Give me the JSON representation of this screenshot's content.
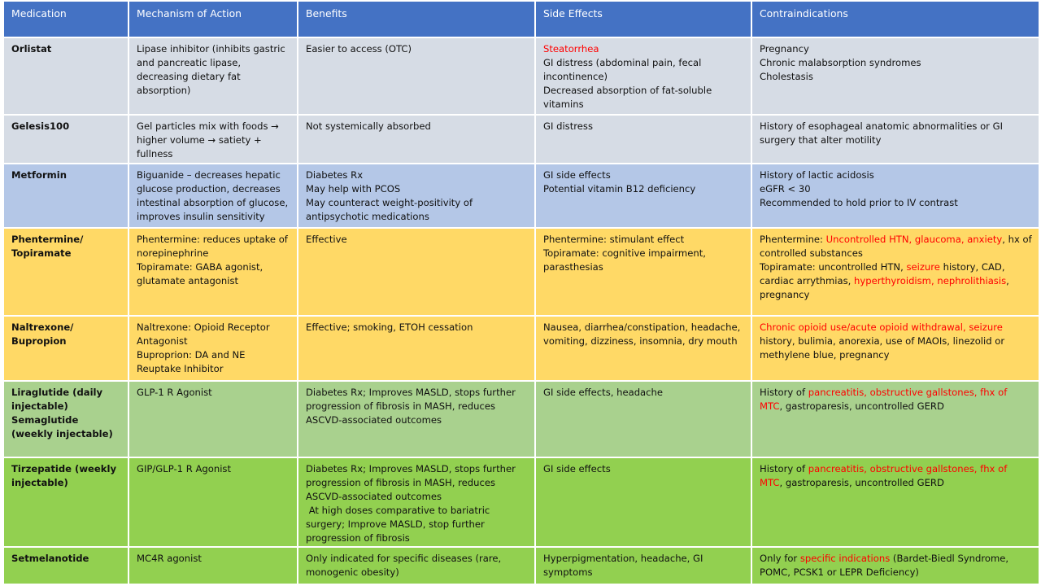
{
  "table": {
    "headers": [
      "Medication",
      "Mechanism of Action",
      "Benefits",
      "Side Effects",
      "Contraindications"
    ],
    "header_color": "#4472c4",
    "rows": [
      {
        "color": "#d6dce5",
        "cells": [
          [
            [
              "Orlistat"
            ]
          ],
          [
            [
              "Lipase inhibitor (inhibits gastric and pancreatic lipase, decreasing dietary fat absorption)"
            ]
          ],
          [
            [
              "Easier to access (OTC)"
            ]
          ],
          [
            [
              {
                "text": "Steatorrhea",
                "color": "#ff0000"
              }
            ],
            [
              "GI distress (abdominal pain, fecal incontinence)"
            ],
            [
              "Decreased absorption of fat-soluble vitamins"
            ]
          ],
          [
            [
              "Pregnancy"
            ],
            [
              "Chronic malabsorption syndromes"
            ],
            [
              "Cholestasis"
            ]
          ]
        ]
      },
      {
        "color": "#d6dce5",
        "cells": [
          [
            [
              "Gelesis100"
            ]
          ],
          [
            [
              "Gel particles mix with foods → higher volume → satiety + fullness"
            ]
          ],
          [
            [
              "Not systemically absorbed"
            ]
          ],
          [
            [
              "GI distress"
            ]
          ],
          [
            [
              "History of esophageal anatomic abnormalities or GI surgery that alter motility"
            ]
          ]
        ]
      },
      {
        "color": "#b4c7e7",
        "cells": [
          [
            [
              "Metformin"
            ]
          ],
          [
            [
              "Biguanide – decreases hepatic glucose production, decreases intestinal absorption of glucose, improves insulin sensitivity"
            ]
          ],
          [
            [
              "Diabetes Rx"
            ],
            [
              "May help with PCOS"
            ],
            [
              "May counteract weight-positivity of antipsychotic medications"
            ]
          ],
          [
            [
              "GI side effects"
            ],
            [
              "Potential vitamin B12 deficiency"
            ]
          ],
          [
            [
              "History of lactic acidosis"
            ],
            [
              "eGFR < 30"
            ],
            [
              "Recommended to hold prior to IV contrast"
            ]
          ]
        ]
      },
      {
        "color": "#ffd966",
        "cells": [
          [
            [
              "Phentermine/"
            ],
            [
              "Topiramate"
            ]
          ],
          [
            [
              "Phentermine: reduces uptake of norepinephrine"
            ],
            [
              "Topiramate: GABA agonist, glutamate antagonist"
            ]
          ],
          [
            [
              "Effective"
            ]
          ],
          [
            [
              "Phentermine: stimulant effect"
            ],
            [
              "Topiramate: cognitive impairment, parasthesias"
            ]
          ],
          [
            [
              "Phentermine: ",
              {
                "text": "Uncontrolled HTN, glaucoma, anxiety",
                "color": "#ff0000"
              },
              ", hx of controlled substances"
            ],
            [
              "Topiramate: uncontrolled HTN, ",
              {
                "text": "seizure",
                "color": "#ff0000"
              },
              " history, CAD, cardiac arrythmias, ",
              {
                "text": "hyperthyroidism, nephrolithiasis",
                "color": "#ff0000"
              },
              ", pregnancy"
            ]
          ]
        ]
      },
      {
        "color": "#ffd966",
        "cells": [
          [
            [
              "Naltrexone/"
            ],
            [
              "Bupropion"
            ]
          ],
          [
            [
              "Naltrexone: Opioid Receptor Antagonist"
            ],
            [
              "Buproprion: DA and NE Reuptake Inhibitor"
            ]
          ],
          [
            [
              "Effective; smoking, ETOH cessation"
            ]
          ],
          [
            [
              "Nausea, diarrhea/constipation, headache, vomiting, dizziness, insomnia, dry mouth"
            ]
          ],
          [
            [
              {
                "text": "Chronic opioid use/acute opioid withdrawal, seizure",
                "color": "#ff0000"
              },
              " history, bulimia, anorexia, use of MAOIs, linezolid or methylene blue, pregnancy"
            ]
          ]
        ]
      },
      {
        "color": "#a9d18e",
        "cells": [
          [
            [
              "Liraglutide (daily injectable)"
            ],
            [
              "Semaglutide (weekly injectable)"
            ]
          ],
          [
            [
              "GLP-1 R Agonist"
            ]
          ],
          [
            [
              "Diabetes Rx; Improves MASLD, stops further progression of fibrosis in MASH, reduces ASCVD-associated outcomes"
            ]
          ],
          [
            [
              "GI side effects, headache"
            ]
          ],
          [
            [
              "History of ",
              {
                "text": "pancreatitis, obstructive gallstones, fhx of MTC",
                "color": "#ff0000"
              },
              ", gastroparesis, uncontrolled GERD"
            ]
          ]
        ]
      },
      {
        "color": "#92d050",
        "cells": [
          [
            [
              "Tirzepatide (weekly injectable)"
            ]
          ],
          [
            [
              "GIP/GLP-1 R Agonist"
            ]
          ],
          [
            [
              "Diabetes Rx; Improves MASLD, stops further progression of fibrosis in MASH, reduces ASCVD-associated outcomes"
            ],
            [
              " At high doses comparative to bariatric surgery; Improve MASLD, stop further progression of fibrosis"
            ]
          ],
          [
            [
              "GI side effects"
            ]
          ],
          [
            [
              "History of ",
              {
                "text": "pancreatitis, obstructive gallstones, fhx of MTC",
                "color": "#ff0000"
              },
              ", gastroparesis, uncontrolled GERD"
            ]
          ]
        ]
      },
      {
        "color": "#92d050",
        "cells": [
          [
            [
              "Setmelanotide"
            ]
          ],
          [
            [
              "MC4R agonist"
            ]
          ],
          [
            [
              "Only indicated for specific diseases (rare, monogenic obesity)"
            ]
          ],
          [
            [
              "Hyperpigmentation, headache, GI symptoms"
            ]
          ],
          [
            [
              "Only for ",
              {
                "text": "specific indications",
                "color": "#ff0000"
              },
              " (Bardet-Biedl Syndrome, POMC, PCSK1 or LEPR Deficiency)"
            ]
          ]
        ]
      }
    ]
  }
}
